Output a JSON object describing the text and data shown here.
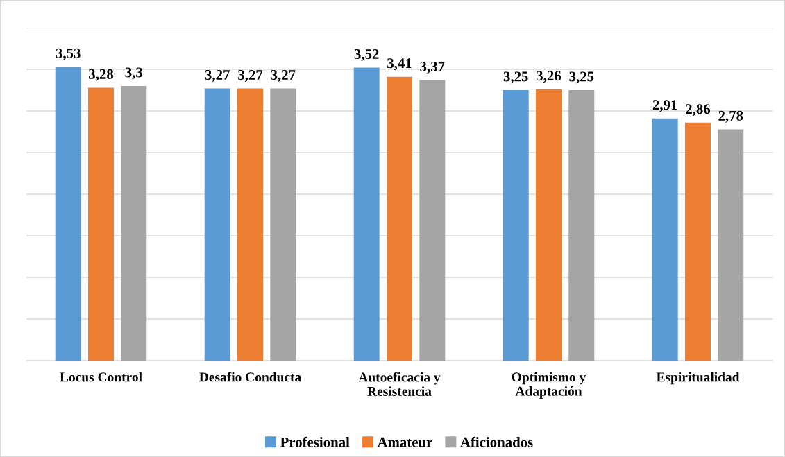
{
  "chart_data": {
    "type": "bar",
    "categories": [
      "Locus Control",
      "Desafio Conducta",
      "Autoeficacia y\nResistencia",
      "Optimismo y\nAdaptación",
      "Espiritualidad"
    ],
    "series": [
      {
        "name": "Profesional",
        "color": "#5b9bd5",
        "values": [
          3.53,
          3.27,
          3.52,
          3.25,
          2.91
        ],
        "value_labels": [
          "3,53",
          "3,27",
          "3,52",
          "3,25",
          "2,91"
        ]
      },
      {
        "name": "Amateur",
        "color": "#ed7d31",
        "values": [
          3.28,
          3.27,
          3.41,
          3.26,
          2.86
        ],
        "value_labels": [
          "3,28",
          "3,27",
          "3,41",
          "3,26",
          "2,86"
        ]
      },
      {
        "name": "Aficionados",
        "color": "#a5a5a5",
        "values": [
          3.3,
          3.27,
          3.37,
          3.25,
          2.78
        ],
        "value_labels": [
          "3,3",
          "3,27",
          "3,37",
          "3,25",
          "2,78"
        ]
      }
    ],
    "ylim": [
      0,
      4
    ],
    "yticks": [
      {
        "value": 0,
        "label": null
      },
      {
        "value": 0.5,
        "label": null
      },
      {
        "value": 1,
        "label": null
      },
      {
        "value": 1.5,
        "label": null
      },
      {
        "value": 2,
        "label": null
      },
      {
        "value": 2.5,
        "label": null
      },
      {
        "value": 3,
        "label": null
      },
      {
        "value": 3.5,
        "label": null
      },
      {
        "value": 4,
        "label": null
      }
    ],
    "tick_labels": "x",
    "grid": "y",
    "legend": "bottom"
  }
}
